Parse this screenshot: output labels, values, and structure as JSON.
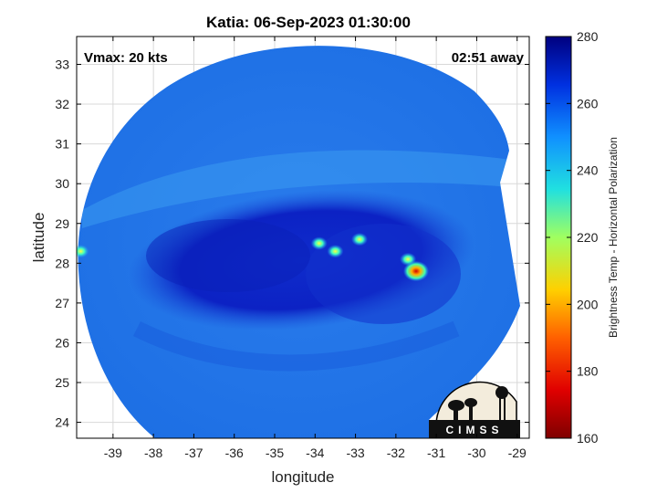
{
  "title": "Katia: 06-Sep-2023 01:30:00",
  "annotations": {
    "vmax": "Vmax: 20 kts",
    "time_away": "02:51 away"
  },
  "axes": {
    "xlabel": "longitude",
    "ylabel": "latitude",
    "x_ticks": [
      -39,
      -38,
      -37,
      -36,
      -35,
      -34,
      -33,
      -32,
      -31,
      -30,
      -29
    ],
    "y_ticks": [
      24,
      25,
      26,
      27,
      28,
      29,
      30,
      31,
      32,
      33
    ],
    "xlim": [
      -39.9,
      -28.7
    ],
    "ylim": [
      23.6,
      33.7
    ],
    "grid": true
  },
  "colorbar": {
    "label": "Brightness Temp - Horizontal Polarization",
    "ticks": [
      160,
      180,
      200,
      220,
      240,
      260,
      280
    ],
    "range": [
      160,
      280
    ],
    "colormap": "jet",
    "placement": "right"
  },
  "map_data": {
    "type": "heatmap",
    "swath_background_temp": 253,
    "rainband_temp": 247,
    "core_temp": 268,
    "warm_cores": [
      {
        "lon": -31.5,
        "lat": 27.8,
        "temp": 185
      },
      {
        "lon": -31.7,
        "lat": 28.1,
        "temp": 220
      },
      {
        "lon": -32.9,
        "lat": 28.6,
        "temp": 225
      },
      {
        "lon": -33.9,
        "lat": 28.5,
        "temp": 230
      },
      {
        "lon": -33.5,
        "lat": 28.3,
        "temp": 232
      },
      {
        "lon": -39.8,
        "lat": 28.3,
        "temp": 238
      }
    ]
  },
  "logo": {
    "text": "CIMSS"
  },
  "colors": {
    "swath": "#1f78e8",
    "core": "#0a1ec8",
    "grid": "#d8d8d8"
  }
}
